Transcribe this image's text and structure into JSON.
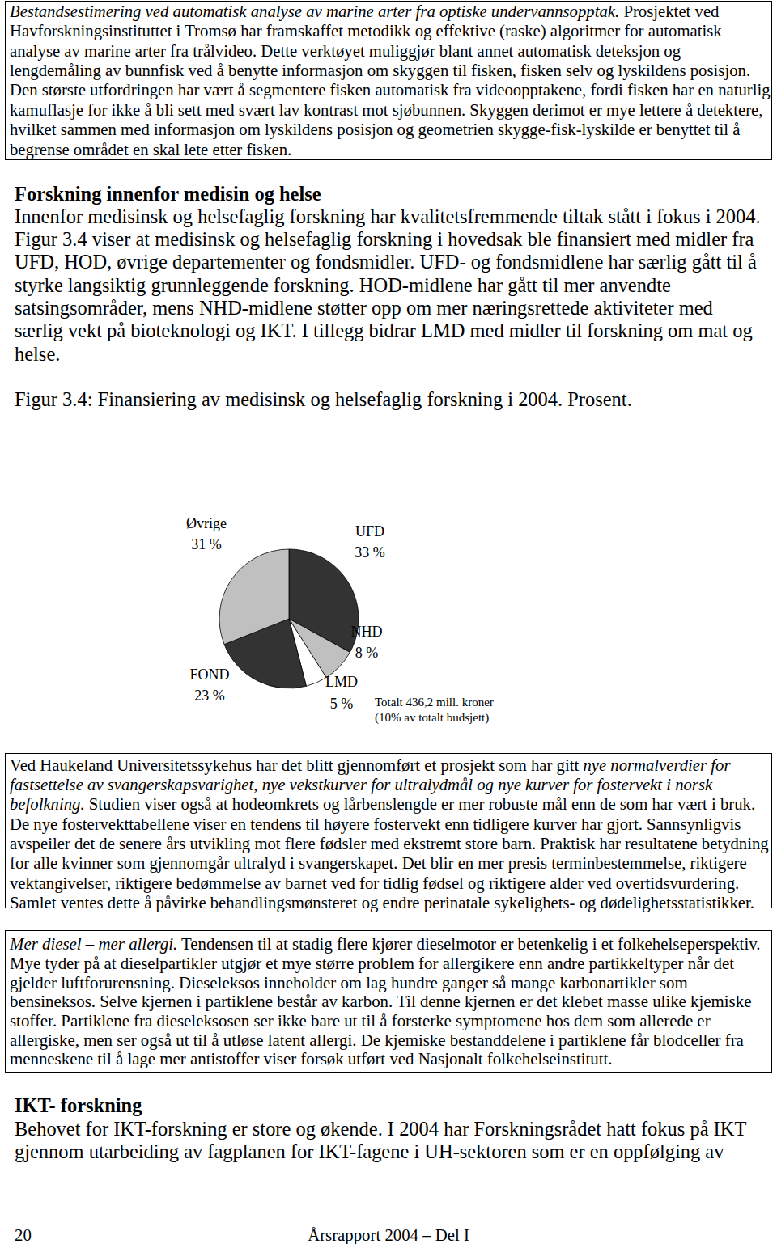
{
  "document": {
    "box1": {
      "lines": [
        [
          {
            "text": "Bestandsestimering ved automatisk analyse av marine arter fra optiske undervannsopptak.",
            "italic": true
          },
          {
            "text": " Prosjektet ved"
          }
        ],
        [
          {
            "text": "Havforskningsinstituttet i Tromsø har framskaffet metodikk og effektive (raske) algoritmer for automatisk"
          }
        ],
        [
          {
            "text": "analyse av marine arter fra trålvideo. Dette verktøyet muliggjør blant annet automatisk deteksjon og"
          }
        ],
        [
          {
            "text": "lengdemåling av bunnfisk ved å benytte informasjon om skyggen til fisken, fisken selv og lyskildens posisjon."
          }
        ],
        [
          {
            "text": "Den største utfordringen har vært å segmentere fisken automatisk fra videoopptakene, fordi fisken har en naturlig"
          }
        ],
        [
          {
            "text": "kamuflasje for ikke å bli sett med svært lav kontrast mot sjøbunnen. Skyggen derimot er mye lettere å detektere,"
          }
        ],
        [
          {
            "text": "hvilket sammen med informasjon om lyskildens posisjon og geometrien skygge-fisk-lyskilde er benyttet til å"
          }
        ],
        [
          {
            "text": "begrense området en skal lete etter fisken."
          }
        ]
      ]
    },
    "section1": {
      "heading": "Forskning innenfor medisin og helse",
      "lines": [
        "Innenfor medisinsk og helsefaglig forskning har kvalitetsfremmende tiltak stått i fokus i 2004.",
        "Figur 3.4 viser at medisinsk og helsefaglig forskning i hovedsak ble finansiert med midler fra",
        "UFD, HOD, øvrige departementer og fondsmidler. UFD- og fondsmidlene har særlig gått til å",
        "styrke langsiktig grunnleggende forskning. HOD-midlene har gått til mer anvendte",
        "satsingsområder, mens NHD-midlene støtter opp om mer næringsrettede aktiviteter med",
        "særlig vekt på bioteknologi og IKT. I tillegg bidrar LMD med midler til forskning om mat og",
        "helse."
      ]
    },
    "box2": {
      "lines": [
        [
          {
            "text": "Ved Haukeland Universitetssykehus har det blitt gjennomført et prosjekt som har gitt "
          },
          {
            "text": "nye normalverdier for",
            "italic": true
          }
        ],
        [
          {
            "text": "fastsettelse av svangerskapsvarighet, nye vekstkurver for ultralydmål og nye kurver for fostervekt i norsk",
            "italic": true
          }
        ],
        [
          {
            "text": "befolkning.",
            "italic": true
          },
          {
            "text": " Studien viser også at hodeomkrets og lårbenslengde er mer robuste mål enn de som har vært i bruk."
          }
        ],
        [
          {
            "text": "De nye fostervekttabellene viser en tendens til høyere fostervekt enn tidligere kurver har gjort. Sannsynligvis"
          }
        ],
        [
          {
            "text": "avspeiler det de senere års utvikling mot flere fødsler med ekstremt store barn. Praktisk har resultatene betydning"
          }
        ],
        [
          {
            "text": "for alle kvinner som gjennomgår ultralyd i svangerskapet. Det blir en mer presis terminbestemmelse, riktigere"
          }
        ],
        [
          {
            "text": "vektangivelser, riktigere bedømmelse av barnet ved for tidlig fødsel og riktigere alder ved overtidsvurdering."
          }
        ],
        [
          {
            "text": "Samlet ventes dette å påvirke behandlingsmønsteret og endre perinatale sykelighets- og dødelighetsstatistikker."
          }
        ]
      ]
    },
    "box3": {
      "lines": [
        [
          {
            "text": "Mer diesel – mer allergi.",
            "italic": true
          },
          {
            "text": " Tendensen til at stadig flere kjører dieselmotor er betenkelig i et folkehelseperspektiv."
          }
        ],
        [
          {
            "text": "Mye tyder på at dieselpartikler utgjør et mye større problem for allergikere enn andre partikkeltyper når det"
          }
        ],
        [
          {
            "text": "gjelder luftforurensning. Dieseleksos inneholder om lag hundre ganger så mange karbonartikler som"
          }
        ],
        [
          {
            "text": "bensineksos. Selve kjernen i partiklene består av karbon. Til denne kjernen er det klebet masse ulike kjemiske"
          }
        ],
        [
          {
            "text": "stoffer. Partiklene fra dieseleksosen ser ikke bare ut til å forsterke symptomene hos dem som allerede er"
          }
        ],
        [
          {
            "text": "allergiske, men ser også ut til å utløse latent allergi. De kjemiske bestanddelene i partiklene får blodceller fra"
          }
        ],
        [
          {
            "text": "menneskene til å lage mer antistoffer viser forsøk utført ved Nasjonalt folkehelseinstitutt."
          }
        ]
      ]
    },
    "section2": {
      "heading": "IKT- forskning",
      "lines": [
        "Behovet for IKT-forskning er store og økende. I 2004 har Forskningsrådet hatt fokus på IKT",
        "gjennom utarbeiding av fagplanen for IKT-fagene i UH-sektoren som er en oppfølging av"
      ]
    },
    "footer": {
      "page": "20",
      "title": "Årsrapport 2004 – Del I"
    }
  },
  "chart_data": {
    "type": "pie",
    "title": "Figur 3.4: Finansiering av medisinsk og helsefaglig forskning i 2004. Prosent.",
    "categories": [
      "UFD",
      "NHD",
      "LMD",
      "FOND",
      "Øvrige"
    ],
    "values": [
      33,
      8,
      5,
      23,
      31
    ],
    "value_labels": [
      "33 %",
      "8 %",
      "5 %",
      "23 %",
      "31 %"
    ],
    "colors": [
      "#333333",
      "#c0c0c0",
      "#ffffff",
      "#333333",
      "#c0c0c0"
    ],
    "data_labels": true,
    "annotations": [
      "Totalt 436,2 mill. kroner",
      "(10% av totalt budsjett)"
    ]
  }
}
